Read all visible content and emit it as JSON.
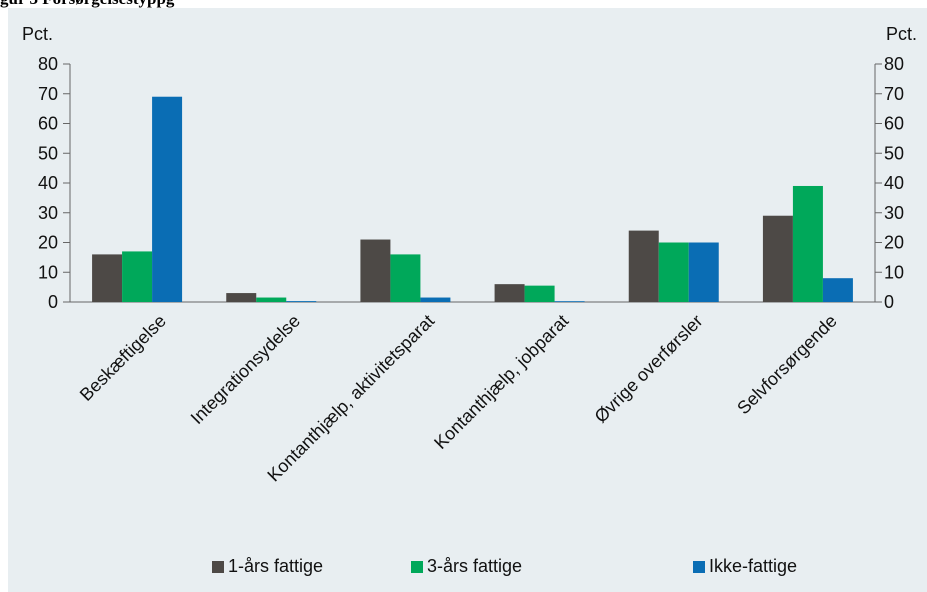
{
  "figure": {
    "title": "gur 3 Forsørgelsestyppg"
  },
  "chart_data": {
    "type": "bar",
    "y_unit_left": "Pct.",
    "y_unit_right": "Pct.",
    "ylim": [
      0,
      80
    ],
    "y_ticks": [
      "0",
      "10",
      "20",
      "30",
      "40",
      "50",
      "60",
      "70",
      "80"
    ],
    "grid": false,
    "legend_position": "bottom",
    "categories": [
      "Beskæftigelse",
      "Integrationsydelse",
      "Kontanthjælp, aktivitetsparat",
      "Kontanthjælp, jobparat",
      "Øvrige overførsler",
      "Selvforsørgende"
    ],
    "series": [
      {
        "name": "1-års fattige",
        "color": "#4d4946",
        "values": [
          16,
          3,
          21,
          6,
          24,
          29
        ]
      },
      {
        "name": "3-års fattige",
        "color": "#00a85a",
        "values": [
          17,
          1.5,
          16,
          5.5,
          20,
          39
        ]
      },
      {
        "name": "Ikke-fattige",
        "color": "#0a6db4",
        "values": [
          69,
          0.3,
          1.5,
          0.2,
          20,
          8
        ]
      }
    ]
  }
}
